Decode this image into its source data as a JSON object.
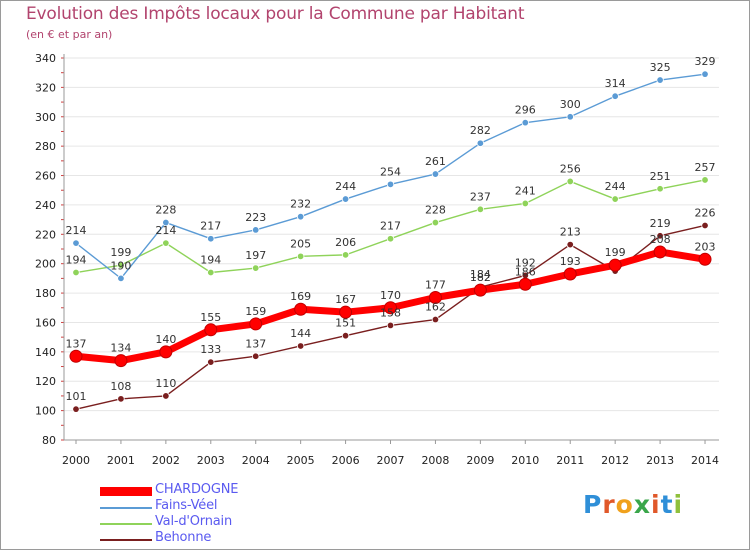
{
  "title": "Evolution des Impôts locaux pour la Commune par Habitant",
  "subtitle": "(en € et par an)",
  "logo": {
    "letters": [
      "P",
      "r",
      "o",
      "x",
      "i",
      "t",
      "i"
    ],
    "colors": [
      "#2f8fd8",
      "#e0582a",
      "#f0a11c",
      "#3aa64a",
      "#e0582a",
      "#2f8fd8",
      "#8fc03c"
    ]
  },
  "chart_data": {
    "type": "line",
    "x": [
      2000,
      2001,
      2002,
      2003,
      2004,
      2005,
      2006,
      2007,
      2008,
      2009,
      2010,
      2011,
      2012,
      2013,
      2014
    ],
    "ylim": [
      80,
      340
    ],
    "yticks": [
      80,
      100,
      120,
      140,
      160,
      180,
      200,
      220,
      240,
      260,
      280,
      300,
      320,
      340
    ],
    "grid": "horizontal",
    "legend_position": "bottom-left",
    "series": [
      {
        "name": "Behonne",
        "color": "#7a1f1f",
        "values": [
          101,
          108,
          110,
          133,
          137,
          144,
          151,
          158,
          162,
          184,
          192,
          213,
          195,
          219,
          226
        ],
        "labels": [
          "101",
          "108",
          "110",
          "133",
          "137",
          "144",
          "151",
          "158",
          "162",
          "184",
          "192",
          "213",
          "",
          "219",
          "226"
        ]
      },
      {
        "name": "Val-d'Ornain",
        "color": "#8fd35a",
        "values": [
          194,
          199,
          214,
          194,
          197,
          205,
          206,
          217,
          228,
          237,
          241,
          256,
          244,
          251,
          257
        ],
        "labels": [
          "194",
          "199",
          "214",
          "194",
          "197",
          "205",
          "206",
          "217",
          "228",
          "237",
          "241",
          "256",
          "244",
          "251",
          "257"
        ]
      },
      {
        "name": "Fains-Véel",
        "color": "#5b9bd5",
        "values": [
          214,
          190,
          228,
          217,
          223,
          232,
          244,
          254,
          261,
          282,
          296,
          300,
          314,
          325,
          329
        ],
        "labels": [
          "214",
          "190",
          "228",
          "217",
          "223",
          "232",
          "244",
          "254",
          "261",
          "282",
          "296",
          "300",
          "314",
          "325",
          "329"
        ]
      },
      {
        "name": "CHARDOGNE",
        "color": "#ff0000",
        "values": [
          137,
          134,
          140,
          155,
          159,
          169,
          167,
          170,
          177,
          182,
          186,
          193,
          199,
          208,
          203
        ],
        "labels": [
          "137",
          "134",
          "140",
          "155",
          "159",
          "169",
          "167",
          "170",
          "177",
          "182",
          "186",
          "193",
          "199",
          "208",
          "203"
        ]
      }
    ],
    "legend_order": [
      "CHARDOGNE",
      "Fains-Véel",
      "Val-d'Ornain",
      "Behonne"
    ]
  }
}
